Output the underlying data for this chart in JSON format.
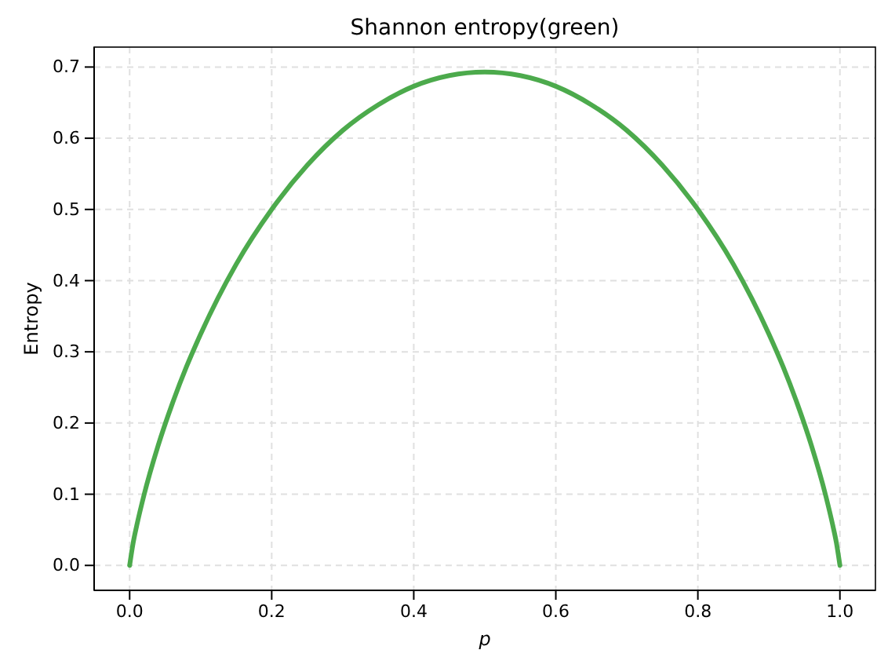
{
  "chart_data": {
    "type": "line",
    "title": "Shannon entropy(green)",
    "xlabel": "p",
    "ylabel": "Entropy",
    "x": [
      0,
      0.005,
      0.01,
      0.02,
      0.04,
      0.06,
      0.08,
      0.1,
      0.15,
      0.2,
      0.25,
      0.3,
      0.35,
      0.4,
      0.45,
      0.5,
      0.55,
      0.6,
      0.65,
      0.7,
      0.75,
      0.8,
      0.85,
      0.9,
      0.92,
      0.94,
      0.96,
      0.98,
      0.99,
      0.995,
      1
    ],
    "series": [
      {
        "color": "#4caa4c",
        "values": [
          0,
          0.032,
          0.056,
          0.098,
          0.168,
          0.227,
          0.279,
          0.325,
          0.423,
          0.5,
          0.562,
          0.611,
          0.647,
          0.673,
          0.688,
          0.693,
          0.688,
          0.673,
          0.647,
          0.611,
          0.562,
          0.5,
          0.423,
          0.325,
          0.279,
          0.227,
          0.168,
          0.098,
          0.056,
          0.032,
          0
        ]
      }
    ],
    "xlim": [
      -0.05,
      1.05
    ],
    "xticks": [
      {
        "value": 0,
        "label": "0.0"
      },
      0.2,
      0.4,
      0.6,
      0.8,
      {
        "value": 1,
        "label": "1.0"
      }
    ],
    "ylim": [
      -0.035,
      0.728
    ],
    "yticks": [
      {
        "value": 0,
        "label": "0.0"
      },
      0.1,
      0.2,
      0.3,
      0.4,
      0.5,
      0.6,
      0.7
    ],
    "grid": true,
    "line_style": "solid",
    "marker": "none"
  }
}
